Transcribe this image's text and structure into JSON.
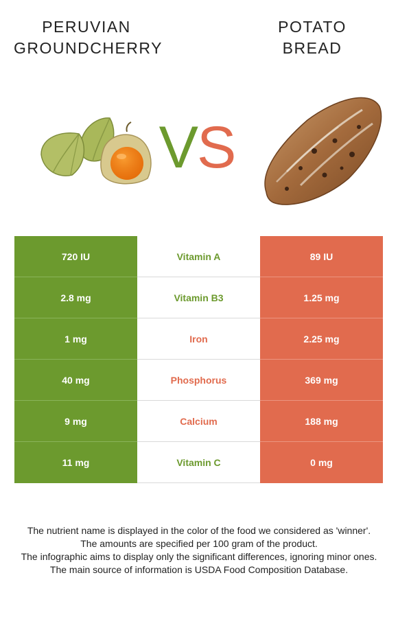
{
  "left_food": {
    "title_line1": "PERUVIAN",
    "title_line2": "GROUNDCHERRY",
    "color": "#6c9a2e"
  },
  "right_food": {
    "title_line1": "POTATO",
    "title_line2": "BREAD",
    "color": "#e16b4e"
  },
  "vs": {
    "v": "V",
    "s": "S"
  },
  "rows": [
    {
      "left": "720 IU",
      "nutrient": "Vitamin A",
      "right": "89 IU",
      "winner": "left"
    },
    {
      "left": "2.8 mg",
      "nutrient": "Vitamin B3",
      "right": "1.25 mg",
      "winner": "left"
    },
    {
      "left": "1 mg",
      "nutrient": "Iron",
      "right": "2.25 mg",
      "winner": "right"
    },
    {
      "left": "40 mg",
      "nutrient": "Phosphorus",
      "right": "369 mg",
      "winner": "right"
    },
    {
      "left": "9 mg",
      "nutrient": "Calcium",
      "right": "188 mg",
      "winner": "right"
    },
    {
      "left": "11 mg",
      "nutrient": "Vitamin C",
      "right": "0 mg",
      "winner": "left"
    }
  ],
  "footer": {
    "line1": "The nutrient name is displayed in the color of the food we considered as 'winner'.",
    "line2": "The amounts are specified per 100 gram of the product.",
    "line3": "The infographic aims to display only the significant differences, ignoring minor ones.",
    "line4": "The main source of information is USDA Food Composition Database."
  }
}
